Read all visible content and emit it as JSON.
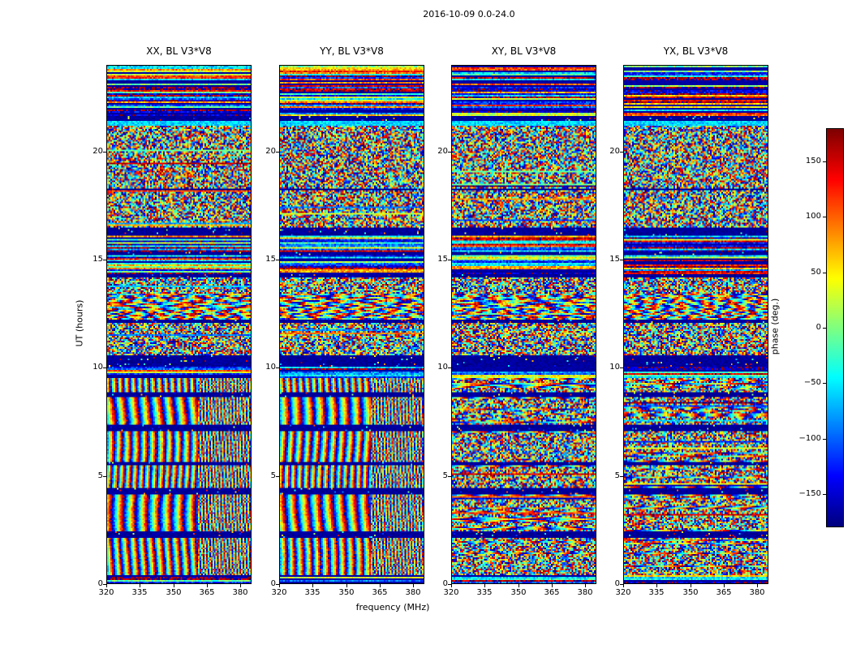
{
  "chart_data": {
    "type": "heatmap",
    "title": "2016-10-09 0.0-24.0",
    "xlabel": "frequency (MHz)",
    "ylabel": "UT (hours)",
    "x_range": [
      320,
      385
    ],
    "x_ticks": [
      320,
      335,
      350,
      365,
      380
    ],
    "y_range": [
      0,
      24
    ],
    "y_ticks": [
      0,
      5,
      10,
      15,
      20
    ],
    "grid": false,
    "panels": [
      {
        "title": "XX, BL V3*V8",
        "pol": "XX",
        "fringes": true
      },
      {
        "title": "YY, BL V3*V8",
        "pol": "YY",
        "fringes": true
      },
      {
        "title": "XY, BL V3*V8",
        "pol": "XY",
        "fringes": false
      },
      {
        "title": "YX, BL V3*V8",
        "pol": "YX",
        "fringes": false
      }
    ],
    "colorbar": {
      "label": "phase (deg.)",
      "colormap": "jet",
      "range": [
        -180,
        180
      ],
      "ticks": [
        150,
        100,
        50,
        0,
        -50,
        -100,
        -150
      ]
    },
    "visual_structure_bands": [
      {
        "from": 0.0,
        "to": 0.35,
        "mode": "hstripes"
      },
      {
        "from": 0.35,
        "to": 2.1,
        "mode": "vstripes"
      },
      {
        "from": 2.1,
        "to": 2.4,
        "mode": "dark"
      },
      {
        "from": 2.4,
        "to": 4.15,
        "mode": "vstripes"
      },
      {
        "from": 4.15,
        "to": 4.45,
        "mode": "dark"
      },
      {
        "from": 4.45,
        "to": 5.45,
        "mode": "vstripes"
      },
      {
        "from": 5.45,
        "to": 5.65,
        "mode": "dark"
      },
      {
        "from": 5.65,
        "to": 7.05,
        "mode": "vstripes"
      },
      {
        "from": 7.05,
        "to": 7.35,
        "mode": "dark"
      },
      {
        "from": 7.35,
        "to": 8.65,
        "mode": "vstripes"
      },
      {
        "from": 8.65,
        "to": 8.85,
        "mode": "dark"
      },
      {
        "from": 8.85,
        "to": 9.55,
        "mode": "vstripes"
      },
      {
        "from": 9.55,
        "to": 10.05,
        "mode": "hstripes"
      },
      {
        "from": 10.05,
        "to": 10.6,
        "mode": "dark"
      },
      {
        "from": 10.6,
        "to": 12.1,
        "mode": "speckle"
      },
      {
        "from": 12.1,
        "to": 12.25,
        "mode": "dark"
      },
      {
        "from": 12.25,
        "to": 13.4,
        "mode": "wavy"
      },
      {
        "from": 13.4,
        "to": 14.2,
        "mode": "speckle"
      },
      {
        "from": 14.2,
        "to": 14.35,
        "mode": "dark"
      },
      {
        "from": 14.35,
        "to": 15.2,
        "mode": "hstripes"
      },
      {
        "from": 15.2,
        "to": 15.4,
        "mode": "dark"
      },
      {
        "from": 15.4,
        "to": 16.1,
        "mode": "hstripes"
      },
      {
        "from": 16.1,
        "to": 16.5,
        "mode": "dark"
      },
      {
        "from": 16.5,
        "to": 18.2,
        "mode": "speckle"
      },
      {
        "from": 18.2,
        "to": 18.32,
        "mode": "dark"
      },
      {
        "from": 18.32,
        "to": 21.2,
        "mode": "speckle"
      },
      {
        "from": 21.2,
        "to": 21.45,
        "mode": "cyan"
      },
      {
        "from": 21.45,
        "to": 21.7,
        "mode": "dark"
      },
      {
        "from": 21.7,
        "to": 24.0,
        "mode": "hstripes"
      }
    ]
  },
  "colors": {
    "background": "#ffffff",
    "frame": "#000000",
    "text": "#000000"
  }
}
